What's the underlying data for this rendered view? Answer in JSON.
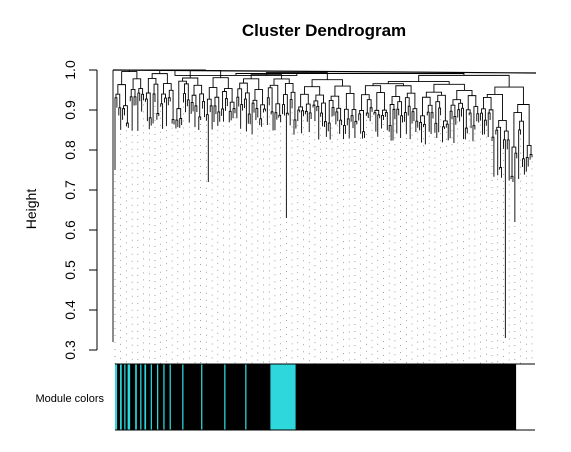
{
  "chart_data": [
    {
      "type": "dendrogram",
      "title": "Cluster Dendrogram",
      "ylabel": "Height",
      "xlabel": "",
      "ylim": [
        0.3,
        1.0
      ],
      "yticks": [
        "0.3",
        "0.4",
        "0.5",
        "0.6",
        "0.7",
        "0.8",
        "0.9",
        "1.0"
      ],
      "grid": false,
      "approx_leaf_count": 220,
      "root_height": 1.0,
      "notable_deep_branches": [
        {
          "leaf_fraction": 0.0,
          "min_height": 0.32
        },
        {
          "leaf_fraction": 0.0,
          "min_height": 0.75
        },
        {
          "leaf_fraction": 0.225,
          "min_height": 0.72
        },
        {
          "leaf_fraction": 0.41,
          "min_height": 0.63
        },
        {
          "leaf_fraction": 0.935,
          "min_height": 0.33
        },
        {
          "leaf_fraction": 0.96,
          "min_height": 0.62
        }
      ]
    },
    {
      "type": "color_bar",
      "label": "Module colors",
      "colors": {
        "module_black": "#000000",
        "module_turquoise": "#2ed7dc"
      },
      "segments": [
        {
          "start": 0.0,
          "end": 0.005,
          "color": "module_turquoise"
        },
        {
          "start": 0.012,
          "end": 0.016,
          "color": "module_turquoise"
        },
        {
          "start": 0.022,
          "end": 0.025,
          "color": "module_turquoise"
        },
        {
          "start": 0.03,
          "end": 0.036,
          "color": "module_turquoise"
        },
        {
          "start": 0.048,
          "end": 0.052,
          "color": "module_turquoise"
        },
        {
          "start": 0.06,
          "end": 0.063,
          "color": "module_turquoise"
        },
        {
          "start": 0.07,
          "end": 0.074,
          "color": "module_turquoise"
        },
        {
          "start": 0.085,
          "end": 0.088,
          "color": "module_turquoise"
        },
        {
          "start": 0.1,
          "end": 0.103,
          "color": "module_turquoise"
        },
        {
          "start": 0.115,
          "end": 0.118,
          "color": "module_turquoise"
        },
        {
          "start": 0.13,
          "end": 0.133,
          "color": "module_turquoise"
        },
        {
          "start": 0.16,
          "end": 0.163,
          "color": "module_turquoise"
        },
        {
          "start": 0.205,
          "end": 0.208,
          "color": "module_turquoise"
        },
        {
          "start": 0.26,
          "end": 0.263,
          "color": "module_turquoise"
        },
        {
          "start": 0.31,
          "end": 0.313,
          "color": "module_turquoise"
        },
        {
          "start": 0.37,
          "end": 0.43,
          "color": "module_turquoise"
        }
      ],
      "background": "module_black",
      "end_fraction": 0.955
    }
  ]
}
